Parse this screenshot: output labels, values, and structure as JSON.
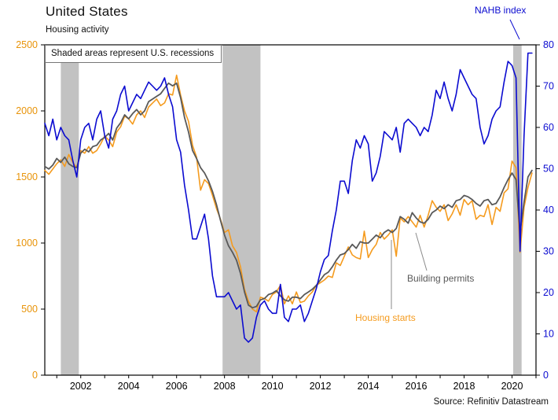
{
  "chart_data": {
    "type": "line",
    "title": "United States",
    "subtitle": "Housing activity",
    "note": "Shaded areas represent U.S. recessions",
    "source": "Source: Refinitiv Datastream",
    "x_start": 2000.5,
    "x_step": 0.166667,
    "x_range": [
      2000.5,
      2021.0
    ],
    "x_ticks_labeled": [
      2002,
      2004,
      2006,
      2008,
      2010,
      2012,
      2014,
      2016,
      2018,
      2020
    ],
    "left_axis": {
      "range": [
        0,
        2500
      ],
      "label_values": [
        0,
        500,
        1000,
        1500,
        2000,
        2500
      ]
    },
    "right_axis": {
      "range": [
        0,
        80
      ],
      "label_values": [
        0,
        10,
        20,
        30,
        40,
        50,
        60,
        70,
        80
      ]
    },
    "recessions": [
      [
        2001.17,
        2001.92
      ],
      [
        2007.92,
        2009.5
      ],
      [
        2020.05,
        2020.4
      ]
    ],
    "grid": false,
    "legend_position": "annotated-on-chart",
    "series": [
      {
        "name": "Housing starts",
        "axis": "left",
        "color": "#F59B1E",
        "width": 1.6,
        "values": [
          1550,
          1520,
          1560,
          1600,
          1630,
          1580,
          1670,
          1610,
          1570,
          1700,
          1680,
          1730,
          1680,
          1700,
          1750,
          1810,
          1780,
          1730,
          1840,
          1880,
          1960,
          1940,
          1900,
          1970,
          2000,
          1950,
          2030,
          2060,
          2090,
          2040,
          2060,
          2130,
          2120,
          2270,
          2120,
          2000,
          1920,
          1740,
          1650,
          1400,
          1480,
          1450,
          1360,
          1260,
          1180,
          1080,
          1100,
          980,
          930,
          820,
          650,
          560,
          500,
          480,
          590,
          580,
          560,
          610,
          630,
          680,
          540,
          600,
          540,
          630,
          550,
          560,
          600,
          630,
          680,
          700,
          720,
          750,
          740,
          850,
          830,
          900,
          970,
          910,
          890,
          880,
          1090,
          890,
          950,
          990,
          1080,
          1030,
          1060,
          1100,
          900,
          1190,
          1160,
          1200,
          1160,
          1120,
          1210,
          1120,
          1210,
          1320,
          1270,
          1240,
          1290,
          1170,
          1220,
          1290,
          1210,
          1330,
          1290,
          1320,
          1180,
          1210,
          1200,
          1290,
          1140,
          1270,
          1240,
          1380,
          1410,
          1620,
          1570,
          930,
          1270,
          1420,
          1530
        ]
      },
      {
        "name": "Building permits",
        "axis": "left",
        "color": "#595959",
        "width": 1.8,
        "values": [
          1580,
          1560,
          1590,
          1640,
          1610,
          1650,
          1600,
          1580,
          1570,
          1680,
          1710,
          1690,
          1730,
          1740,
          1780,
          1800,
          1830,
          1780,
          1870,
          1910,
          1970,
          1940,
          1980,
          2010,
          1970,
          2000,
          2070,
          2090,
          2110,
          2130,
          2170,
          2210,
          2190,
          2210,
          2100,
          1950,
          1840,
          1700,
          1640,
          1570,
          1530,
          1470,
          1390,
          1290,
          1170,
          1060,
          980,
          930,
          870,
          770,
          630,
          530,
          510,
          520,
          570,
          580,
          610,
          620,
          640,
          600,
          570,
          560,
          590,
          590,
          580,
          610,
          630,
          650,
          680,
          720,
          760,
          780,
          820,
          870,
          910,
          920,
          950,
          990,
          960,
          1010,
          1000,
          1000,
          1030,
          1060,
          1040,
          1080,
          1100,
          1080,
          1110,
          1200,
          1180,
          1150,
          1230,
          1190,
          1160,
          1150,
          1180,
          1230,
          1250,
          1280,
          1260,
          1290,
          1270,
          1320,
          1330,
          1360,
          1350,
          1330,
          1300,
          1280,
          1320,
          1330,
          1290,
          1300,
          1350,
          1420,
          1480,
          1530,
          1480,
          1080,
          1310,
          1500,
          1550
        ]
      },
      {
        "name": "NAHB index",
        "axis": "right",
        "color": "#0B0BD0",
        "width": 1.6,
        "values": [
          61,
          58,
          62,
          57,
          60,
          58,
          57,
          52,
          48,
          57,
          60,
          61,
          57,
          62,
          64,
          58,
          55,
          62,
          64,
          68,
          70,
          64,
          66,
          68,
          67,
          69,
          71,
          70,
          69,
          70,
          72,
          68,
          65,
          57,
          54,
          46,
          40,
          33,
          33,
          36,
          39,
          33,
          24,
          19,
          19,
          19,
          20,
          18,
          16,
          17,
          9,
          8,
          9,
          14,
          17,
          18,
          16,
          15,
          15,
          22,
          14,
          13,
          16,
          16,
          17,
          13,
          15,
          18,
          21,
          25,
          28,
          29,
          35,
          40,
          47,
          47,
          44,
          52,
          57,
          55,
          58,
          56,
          47,
          49,
          53,
          59,
          58,
          57,
          60,
          54,
          61,
          62,
          61,
          60,
          58,
          60,
          59,
          63,
          69,
          67,
          71,
          67,
          64,
          68,
          74,
          72,
          70,
          68,
          67,
          60,
          56,
          58,
          62,
          64,
          65,
          71,
          76,
          75,
          72,
          30,
          58,
          78,
          78
        ]
      }
    ]
  },
  "colors": {
    "recession": "#C2C2C2",
    "axis_line": "#000000",
    "left_axis_text": "#E8940A",
    "right_axis_text": "#0B0BD0",
    "x_axis_text": "#000000",
    "connector": "#8A8A8A"
  }
}
